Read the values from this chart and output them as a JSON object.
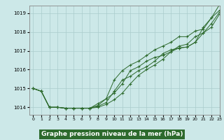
{
  "title": "Graphe pression niveau de la mer (hPa)",
  "bg_color": "#cce8e8",
  "grid_color": "#aacccc",
  "line_color": "#2d6a2d",
  "label_bg": "#2d6a2d",
  "label_fg": "#ffffff",
  "xlim": [
    -0.5,
    23
  ],
  "ylim": [
    1013.6,
    1019.4
  ],
  "yticks": [
    1014,
    1015,
    1016,
    1017,
    1018,
    1019
  ],
  "xticks": [
    0,
    1,
    2,
    3,
    4,
    5,
    6,
    7,
    8,
    9,
    10,
    11,
    12,
    13,
    14,
    15,
    16,
    17,
    18,
    19,
    20,
    21,
    22,
    23
  ],
  "series": [
    [
      1015.0,
      1014.85,
      1014.0,
      1014.0,
      1013.95,
      1013.95,
      1013.95,
      1013.95,
      1014.0,
      1014.15,
      1014.4,
      1014.75,
      1015.25,
      1015.7,
      1016.0,
      1016.25,
      1016.55,
      1016.95,
      1017.15,
      1017.2,
      1017.45,
      1018.25,
      1018.75,
      1019.15
    ],
    [
      1015.0,
      1014.85,
      1014.0,
      1014.0,
      1013.95,
      1013.95,
      1013.95,
      1013.95,
      1014.05,
      1014.25,
      1014.85,
      1015.45,
      1015.65,
      1015.95,
      1016.15,
      1016.45,
      1016.85,
      1017.05,
      1017.15,
      1017.2,
      1017.45,
      1017.95,
      1018.25,
      1018.95
    ],
    [
      1015.0,
      1014.85,
      1014.0,
      1014.0,
      1013.95,
      1013.95,
      1013.95,
      1013.95,
      1014.1,
      1014.45,
      1014.75,
      1015.25,
      1015.95,
      1016.15,
      1016.45,
      1016.65,
      1016.75,
      1016.95,
      1017.25,
      1017.35,
      1017.75,
      1017.95,
      1018.45,
      1019.05
    ],
    [
      1015.0,
      1014.85,
      1014.0,
      1014.0,
      1013.95,
      1013.95,
      1013.95,
      1013.95,
      1014.2,
      1014.45,
      1015.45,
      1015.95,
      1016.25,
      1016.45,
      1016.75,
      1017.05,
      1017.25,
      1017.45,
      1017.75,
      1017.75,
      1018.05,
      1018.15,
      1018.75,
      1019.45
    ]
  ]
}
